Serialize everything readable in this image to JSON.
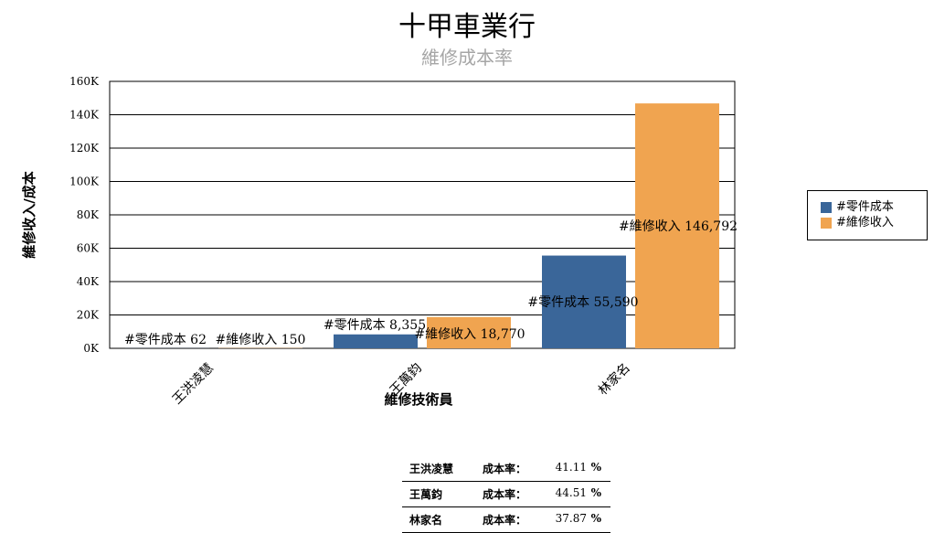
{
  "title": "十甲車業行",
  "subtitle": "維修成本率",
  "chart_data": {
    "type": "bar",
    "title": "十甲車業行",
    "subtitle": "維修成本率",
    "xlabel": "維修技術員",
    "ylabel": "維修收入/成本",
    "categories": [
      "王洪凌慧",
      "王萬鈞",
      "林家名"
    ],
    "series": [
      {
        "name": "#零件成本",
        "color": "#3a6699",
        "values": [
          62,
          8355,
          55590
        ],
        "labels": [
          "#零件成本 62",
          "#零件成本 8,355",
          "#零件成本 55,590"
        ]
      },
      {
        "name": "#維修收入",
        "color": "#f0a450",
        "values": [
          150,
          18770,
          146792
        ],
        "labels": [
          "#維修收入 150",
          "#維修收入 18,770",
          "#維修收入 146,792"
        ]
      }
    ],
    "ylim": [
      0,
      160000
    ],
    "yticks": [
      0,
      20000,
      40000,
      60000,
      80000,
      100000,
      120000,
      140000,
      160000
    ],
    "ytick_labels": [
      "0K",
      "20K",
      "40K",
      "60K",
      "80K",
      "100K",
      "120K",
      "140K",
      "160K"
    ],
    "grid": true,
    "legend_position": "right"
  },
  "rate_table": {
    "rows": [
      {
        "name": "王洪凌慧",
        "label": "成本率：",
        "value": "41.11",
        "unit": "%"
      },
      {
        "name": "王萬鈞",
        "label": "成本率：",
        "value": "44.51",
        "unit": "%"
      },
      {
        "name": "林家名",
        "label": "成本率：",
        "value": "37.87",
        "unit": "%"
      }
    ]
  }
}
